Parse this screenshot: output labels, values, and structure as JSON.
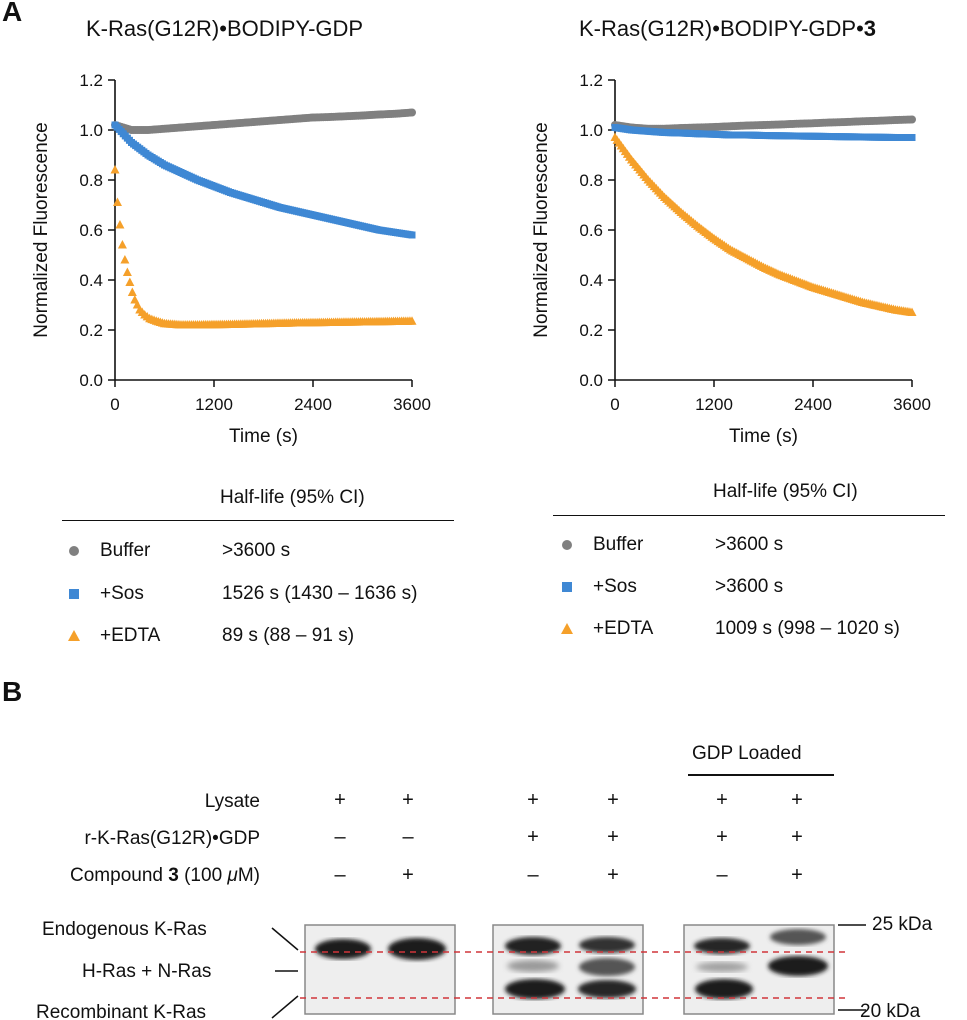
{
  "panel_a_label": "A",
  "panel_b_label": "B",
  "chart_data": [
    {
      "type": "scatter",
      "title": "K-Ras(G12R)•BODIPY-GDP",
      "title_bold": "",
      "xlabel": "Time (s)",
      "ylabel": "Normalized Fluorescence",
      "xlim": [
        0,
        3600
      ],
      "ylim": [
        0,
        1.2
      ],
      "xticks": [
        "0",
        "1200",
        "2400",
        "3600"
      ],
      "yticks": [
        "0.0",
        "0.2",
        "0.4",
        "0.6",
        "0.8",
        "1.0",
        "1.2"
      ],
      "series": [
        {
          "name": "Buffer",
          "color": "#808080",
          "marker": "circle",
          "x": [
            0,
            200,
            400,
            600,
            800,
            1000,
            1200,
            1400,
            1600,
            1800,
            2000,
            2200,
            2400,
            2600,
            2800,
            3000,
            3200,
            3400,
            3600
          ],
          "y": [
            1.02,
            1.0,
            1.0,
            1.005,
            1.01,
            1.015,
            1.02,
            1.025,
            1.03,
            1.035,
            1.04,
            1.045,
            1.05,
            1.052,
            1.055,
            1.058,
            1.062,
            1.065,
            1.07
          ]
        },
        {
          "name": "+Sos",
          "color": "#3f88d4",
          "marker": "square",
          "x": [
            0,
            200,
            400,
            600,
            800,
            1000,
            1200,
            1400,
            1600,
            1800,
            2000,
            2200,
            2400,
            2600,
            2800,
            3000,
            3200,
            3400,
            3600
          ],
          "y": [
            1.02,
            0.95,
            0.9,
            0.86,
            0.83,
            0.8,
            0.775,
            0.75,
            0.73,
            0.71,
            0.69,
            0.675,
            0.66,
            0.645,
            0.63,
            0.615,
            0.6,
            0.59,
            0.58
          ]
        },
        {
          "name": "+EDTA",
          "color": "#f5a02a",
          "marker": "triangle",
          "x": [
            0,
            30,
            60,
            90,
            120,
            150,
            180,
            210,
            240,
            270,
            300,
            360,
            420,
            500,
            600,
            800,
            1000,
            1400,
            1800,
            2200,
            2600,
            3000,
            3400,
            3600
          ],
          "y": [
            0.84,
            0.71,
            0.62,
            0.54,
            0.48,
            0.43,
            0.39,
            0.35,
            0.32,
            0.3,
            0.28,
            0.26,
            0.245,
            0.235,
            0.225,
            0.22,
            0.22,
            0.222,
            0.225,
            0.228,
            0.23,
            0.232,
            0.234,
            0.235
          ]
        }
      ]
    },
    {
      "type": "scatter",
      "title": "K-Ras(G12R)•BODIPY-GDP•",
      "title_bold": "3",
      "xlabel": "Time (s)",
      "ylabel": "Normalized Fluorescence",
      "xlim": [
        0,
        3600
      ],
      "ylim": [
        0,
        1.2
      ],
      "xticks": [
        "0",
        "1200",
        "2400",
        "3600"
      ],
      "yticks": [
        "0.0",
        "0.2",
        "0.4",
        "0.6",
        "0.8",
        "1.0",
        "1.2"
      ],
      "series": [
        {
          "name": "Buffer",
          "color": "#808080",
          "marker": "circle",
          "x": [
            0,
            200,
            400,
            600,
            800,
            1000,
            1200,
            1400,
            1600,
            1800,
            2000,
            2200,
            2400,
            2600,
            2800,
            3000,
            3200,
            3400,
            3600
          ],
          "y": [
            1.02,
            1.01,
            1.005,
            1.005,
            1.008,
            1.01,
            1.012,
            1.015,
            1.018,
            1.02,
            1.022,
            1.025,
            1.027,
            1.03,
            1.032,
            1.035,
            1.037,
            1.04,
            1.042
          ]
        },
        {
          "name": "+Sos",
          "color": "#3f88d4",
          "marker": "square",
          "x": [
            0,
            200,
            400,
            600,
            800,
            1000,
            1200,
            1400,
            1600,
            1800,
            2000,
            2200,
            2400,
            2600,
            2800,
            3000,
            3200,
            3400,
            3600
          ],
          "y": [
            1.01,
            1.0,
            0.995,
            0.99,
            0.988,
            0.985,
            0.983,
            0.98,
            0.98,
            0.978,
            0.977,
            0.976,
            0.975,
            0.974,
            0.973,
            0.972,
            0.971,
            0.97,
            0.97
          ]
        },
        {
          "name": "+EDTA",
          "color": "#f5a02a",
          "marker": "triangle",
          "x": [
            0,
            200,
            400,
            600,
            800,
            1000,
            1200,
            1400,
            1600,
            1800,
            2000,
            2200,
            2400,
            2600,
            2800,
            3000,
            3200,
            3400,
            3600
          ],
          "y": [
            0.97,
            0.88,
            0.8,
            0.73,
            0.67,
            0.615,
            0.565,
            0.52,
            0.485,
            0.45,
            0.42,
            0.395,
            0.37,
            0.35,
            0.33,
            0.31,
            0.295,
            0.28,
            0.27
          ]
        }
      ]
    }
  ],
  "table_left": {
    "header": "Half-life (95% CI)",
    "rows": [
      {
        "name": "Buffer",
        "value": ">3600 s"
      },
      {
        "name": "+Sos",
        "value": "1526 s (1430 – 1636 s)"
      },
      {
        "name": "+EDTA",
        "value": "89 s (88 – 91 s)"
      }
    ]
  },
  "table_right": {
    "header": "Half-life (95% CI)",
    "rows": [
      {
        "name": "Buffer",
        "value": ">3600 s"
      },
      {
        "name": "+Sos",
        "value": ">3600 s"
      },
      {
        "name": "+EDTA",
        "value": "1009 s (998 – 1020 s)"
      }
    ]
  },
  "blot": {
    "gdp_loaded": "GDP Loaded",
    "row_labels": {
      "lysate": "Lysate",
      "rkras": "r-K-Ras(G12R)•GDP",
      "compound_pre": "Compound ",
      "compound_bold": "3",
      "compound_post": " (100 ",
      "compound_mu": "μ",
      "compound_end": "M)"
    },
    "lysate": [
      "+",
      "+",
      "+",
      "+",
      "+",
      "+"
    ],
    "rkras": [
      "–",
      "–",
      "+",
      "+",
      "+",
      "+"
    ],
    "compound": [
      "–",
      "+",
      "–",
      "+",
      "–",
      "+"
    ],
    "band_labels": [
      "Endogenous K-Ras",
      "H-Ras + N-Ras",
      "Recombinant K-Ras"
    ],
    "markers": [
      "25 kDa",
      "20 kDa"
    ]
  }
}
